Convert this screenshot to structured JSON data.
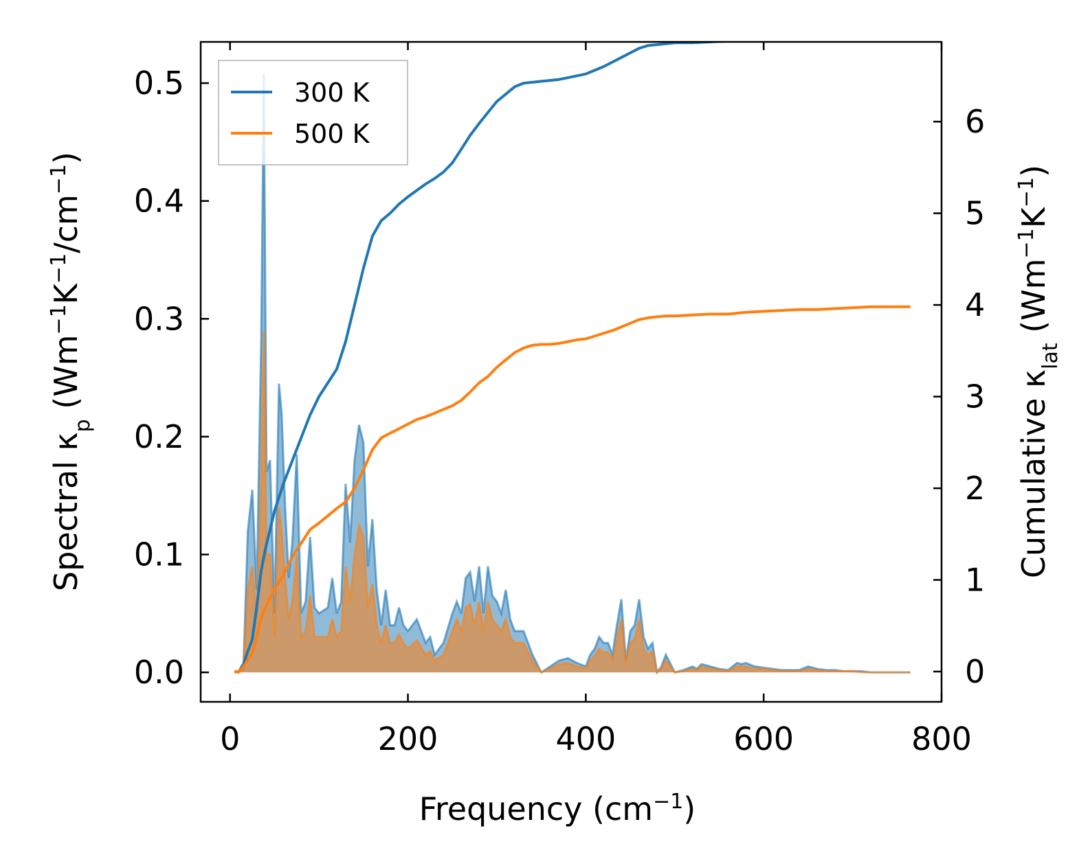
{
  "chart_data": {
    "type": "line",
    "xlabel": {
      "main": "Frequency (cm",
      "sup": "−1",
      "close": ")"
    },
    "ylabel_left": {
      "parts": [
        {
          "t": "Spectral κ"
        },
        {
          "t": "p",
          "s": "sub"
        },
        {
          "t": " (Wm"
        },
        {
          "t": "−1",
          "s": "sup"
        },
        {
          "t": "K"
        },
        {
          "t": "−1",
          "s": "sup"
        },
        {
          "t": "/cm"
        },
        {
          "t": "−1",
          "s": "sup"
        },
        {
          "t": ")"
        }
      ]
    },
    "ylabel_right": {
      "parts": [
        {
          "t": "Cumulative κ"
        },
        {
          "t": "lat",
          "s": "sub"
        },
        {
          "t": " (Wm"
        },
        {
          "t": "−1",
          "s": "sup"
        },
        {
          "t": "K"
        },
        {
          "t": "−1",
          "s": "sup"
        },
        {
          "t": ")"
        }
      ]
    },
    "xlim": [
      -33,
      800
    ],
    "ylim_left": [
      -0.025,
      0.535
    ],
    "ylim_right": [
      -0.33,
      6.87
    ],
    "xticks": [
      0,
      200,
      400,
      600,
      800
    ],
    "xtick_labels": [
      "0",
      "200",
      "400",
      "600",
      "800"
    ],
    "yticks_left": [
      0.0,
      0.1,
      0.2,
      0.3,
      0.4,
      0.5
    ],
    "ytick_labels_left": [
      "0.0",
      "0.1",
      "0.2",
      "0.3",
      "0.4",
      "0.5"
    ],
    "yticks_right": [
      0,
      1,
      2,
      3,
      4,
      5,
      6
    ],
    "ytick_labels_right": [
      "0",
      "1",
      "2",
      "3",
      "4",
      "5",
      "6"
    ],
    "legend_position": "top-left",
    "series": [
      {
        "name": "300 K",
        "color": "#1f77b4",
        "spectral": {
          "x": [
            5,
            10,
            15,
            20,
            25,
            30,
            35,
            38,
            41,
            45,
            50,
            55,
            58,
            62,
            66,
            70,
            75,
            80,
            85,
            90,
            95,
            100,
            110,
            115,
            120,
            125,
            130,
            135,
            140,
            145,
            150,
            155,
            160,
            165,
            170,
            175,
            180,
            185,
            190,
            195,
            200,
            210,
            220,
            225,
            230,
            240,
            250,
            255,
            260,
            265,
            270,
            275,
            280,
            285,
            290,
            295,
            300,
            305,
            310,
            315,
            320,
            330,
            340,
            350,
            360,
            370,
            380,
            390,
            400,
            405,
            410,
            415,
            420,
            425,
            430,
            435,
            440,
            445,
            450,
            455,
            460,
            465,
            470,
            475,
            480,
            485,
            490,
            500,
            510,
            520,
            525,
            530,
            540,
            550,
            560,
            570,
            575,
            580,
            590,
            600,
            610,
            620,
            630,
            640,
            650,
            660,
            670,
            680,
            690,
            700,
            710,
            720,
            730,
            740,
            750,
            765
          ],
          "values": [
            0.0,
            0.0,
            0.003,
            0.12,
            0.155,
            0.07,
            0.28,
            0.508,
            0.17,
            0.18,
            0.05,
            0.245,
            0.22,
            0.14,
            0.08,
            0.11,
            0.185,
            0.05,
            0.06,
            0.115,
            0.055,
            0.05,
            0.055,
            0.08,
            0.05,
            0.06,
            0.16,
            0.11,
            0.18,
            0.21,
            0.195,
            0.09,
            0.13,
            0.07,
            0.04,
            0.07,
            0.04,
            0.04,
            0.055,
            0.04,
            0.035,
            0.045,
            0.025,
            0.03,
            0.015,
            0.025,
            0.05,
            0.06,
            0.05,
            0.08,
            0.085,
            0.06,
            0.09,
            0.05,
            0.09,
            0.065,
            0.06,
            0.05,
            0.07,
            0.045,
            0.035,
            0.035,
            0.015,
            0.0,
            0.005,
            0.01,
            0.012,
            0.008,
            0.005,
            0.015,
            0.02,
            0.03,
            0.025,
            0.025,
            0.015,
            0.04,
            0.062,
            0.01,
            0.035,
            0.04,
            0.062,
            0.03,
            0.02,
            0.025,
            0.0,
            0.005,
            0.015,
            0.0,
            0.002,
            0.005,
            0.003,
            0.007,
            0.005,
            0.003,
            0.002,
            0.008,
            0.007,
            0.008,
            0.005,
            0.004,
            0.003,
            0.002,
            0.002,
            0.002,
            0.005,
            0.003,
            0.002,
            0.002,
            0.001,
            0.001,
            0.001,
            0.0,
            0.0,
            0.0,
            0.0,
            0.0
          ]
        },
        "cumulative": {
          "x": [
            5,
            10,
            15,
            20,
            25,
            30,
            35,
            40,
            50,
            60,
            70,
            80,
            90,
            100,
            110,
            120,
            130,
            140,
            150,
            160,
            170,
            180,
            190,
            200,
            210,
            220,
            230,
            240,
            250,
            260,
            270,
            280,
            290,
            300,
            310,
            320,
            330,
            340,
            350,
            360,
            370,
            380,
            390,
            400,
            410,
            420,
            430,
            440,
            450,
            460,
            470,
            480,
            490,
            500,
            520,
            540,
            560,
            580,
            600,
            620,
            640,
            660,
            680,
            700,
            720,
            740,
            765
          ],
          "values": [
            0.0,
            0.0,
            0.08,
            0.22,
            0.35,
            0.7,
            1.1,
            1.35,
            1.75,
            2.05,
            2.3,
            2.55,
            2.8,
            3.0,
            3.15,
            3.3,
            3.6,
            4.0,
            4.4,
            4.75,
            4.92,
            5.0,
            5.1,
            5.18,
            5.25,
            5.32,
            5.38,
            5.45,
            5.55,
            5.7,
            5.85,
            5.98,
            6.1,
            6.22,
            6.3,
            6.38,
            6.42,
            6.43,
            6.44,
            6.45,
            6.46,
            6.48,
            6.5,
            6.52,
            6.56,
            6.6,
            6.65,
            6.7,
            6.75,
            6.8,
            6.83,
            6.84,
            6.85,
            6.86,
            6.86,
            6.87,
            6.88,
            6.89,
            6.9,
            6.9,
            6.9,
            6.91,
            6.91,
            6.92,
            6.92,
            6.92,
            6.92
          ]
        }
      },
      {
        "name": "500 K",
        "color": "#ff7f0e",
        "spectral": {
          "x": [
            5,
            10,
            15,
            20,
            25,
            30,
            35,
            38,
            41,
            45,
            50,
            55,
            58,
            62,
            66,
            70,
            75,
            80,
            85,
            90,
            95,
            100,
            110,
            115,
            120,
            125,
            130,
            135,
            140,
            145,
            150,
            155,
            160,
            165,
            170,
            175,
            180,
            185,
            190,
            195,
            200,
            210,
            220,
            225,
            230,
            240,
            250,
            255,
            260,
            265,
            270,
            275,
            280,
            285,
            290,
            295,
            300,
            305,
            310,
            315,
            320,
            330,
            340,
            350,
            360,
            370,
            380,
            390,
            400,
            405,
            410,
            415,
            420,
            425,
            430,
            435,
            440,
            445,
            450,
            455,
            460,
            465,
            470,
            475,
            480,
            485,
            490,
            500,
            510,
            520,
            525,
            530,
            540,
            550,
            560,
            570,
            575,
            580,
            590,
            600,
            610,
            620,
            630,
            640,
            650,
            660,
            670,
            680,
            690,
            700,
            710,
            720,
            730,
            740,
            750,
            765
          ],
          "values": [
            0.0,
            0.0,
            0.002,
            0.07,
            0.09,
            0.045,
            0.16,
            0.29,
            0.1,
            0.1,
            0.03,
            0.14,
            0.12,
            0.08,
            0.045,
            0.06,
            0.1,
            0.03,
            0.035,
            0.065,
            0.03,
            0.03,
            0.03,
            0.045,
            0.03,
            0.035,
            0.09,
            0.06,
            0.1,
            0.125,
            0.115,
            0.055,
            0.075,
            0.04,
            0.025,
            0.04,
            0.025,
            0.025,
            0.032,
            0.025,
            0.02,
            0.027,
            0.015,
            0.018,
            0.01,
            0.015,
            0.035,
            0.045,
            0.035,
            0.055,
            0.058,
            0.04,
            0.06,
            0.035,
            0.06,
            0.045,
            0.04,
            0.035,
            0.045,
            0.03,
            0.025,
            0.025,
            0.01,
            0.0,
            0.003,
            0.007,
            0.008,
            0.005,
            0.003,
            0.01,
            0.014,
            0.02,
            0.017,
            0.017,
            0.01,
            0.028,
            0.045,
            0.007,
            0.025,
            0.028,
            0.045,
            0.02,
            0.014,
            0.018,
            0.0,
            0.003,
            0.01,
            0.0,
            0.001,
            0.003,
            0.002,
            0.005,
            0.003,
            0.002,
            0.001,
            0.005,
            0.005,
            0.005,
            0.003,
            0.003,
            0.002,
            0.001,
            0.001,
            0.001,
            0.003,
            0.002,
            0.001,
            0.001,
            0.001,
            0.001,
            0.0,
            0.0,
            0.0,
            0.0,
            0.0,
            0.0
          ]
        },
        "cumulative": {
          "x": [
            5,
            10,
            15,
            20,
            25,
            30,
            35,
            40,
            50,
            60,
            70,
            80,
            90,
            100,
            110,
            120,
            130,
            140,
            150,
            160,
            170,
            180,
            190,
            200,
            210,
            220,
            230,
            240,
            250,
            260,
            270,
            280,
            290,
            300,
            310,
            320,
            330,
            340,
            350,
            360,
            370,
            380,
            390,
            400,
            410,
            420,
            430,
            440,
            450,
            460,
            470,
            480,
            490,
            500,
            520,
            540,
            560,
            580,
            600,
            620,
            640,
            660,
            680,
            700,
            720,
            740,
            765
          ],
          "values": [
            0.0,
            0.0,
            0.05,
            0.13,
            0.2,
            0.38,
            0.58,
            0.7,
            0.9,
            1.05,
            1.25,
            1.4,
            1.55,
            1.62,
            1.7,
            1.78,
            1.85,
            2.0,
            2.2,
            2.42,
            2.55,
            2.6,
            2.65,
            2.7,
            2.75,
            2.78,
            2.82,
            2.86,
            2.9,
            2.96,
            3.05,
            3.15,
            3.22,
            3.32,
            3.4,
            3.48,
            3.53,
            3.56,
            3.57,
            3.57,
            3.58,
            3.6,
            3.62,
            3.63,
            3.66,
            3.69,
            3.72,
            3.76,
            3.8,
            3.84,
            3.86,
            3.87,
            3.88,
            3.88,
            3.89,
            3.9,
            3.9,
            3.92,
            3.93,
            3.94,
            3.95,
            3.95,
            3.96,
            3.97,
            3.98,
            3.98,
            3.98
          ]
        }
      }
    ]
  }
}
